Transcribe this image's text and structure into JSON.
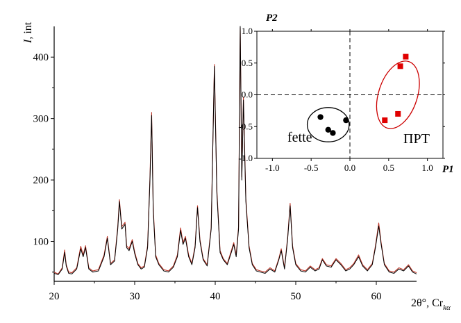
{
  "chart_data": [
    {
      "type": "line",
      "title": "",
      "xlabel": "2θ°, Cr",
      "xlabel_sub": "kα",
      "ylabel_italic": "I",
      "ylabel_rest": ", int",
      "xlim": [
        20,
        65
      ],
      "ylim": [
        35,
        450
      ],
      "xticks": [
        20,
        30,
        40,
        50,
        60
      ],
      "yticks": [
        100,
        200,
        300,
        400
      ],
      "xtick_labels": [
        "20",
        "30",
        "40",
        "50",
        "60"
      ],
      "ytick_labels": [
        "100",
        "200",
        "300",
        "400"
      ],
      "series": [
        {
          "color": "#000000",
          "x": [
            20.0,
            20.5,
            21.0,
            21.3,
            21.5,
            21.8,
            22.2,
            22.8,
            23.3,
            23.6,
            23.9,
            24.3,
            24.8,
            25.5,
            26.2,
            26.6,
            27.0,
            27.5,
            27.9,
            28.1,
            28.4,
            28.8,
            29.0,
            29.3,
            29.7,
            30.0,
            30.4,
            30.8,
            31.2,
            31.6,
            31.9,
            32.1,
            32.3,
            32.6,
            33.0,
            33.6,
            34.2,
            34.8,
            35.3,
            35.7,
            36.0,
            36.3,
            36.7,
            37.1,
            37.5,
            37.8,
            38.1,
            38.5,
            39.0,
            39.5,
            39.9,
            40.2,
            40.6,
            41.0,
            41.5,
            42.0,
            42.3,
            42.6,
            42.9,
            43.1,
            43.3,
            43.5,
            43.8,
            44.2,
            44.6,
            45.1,
            45.6,
            46.2,
            46.8,
            47.4,
            47.9,
            48.2,
            48.6,
            49.0,
            49.3,
            49.6,
            50.0,
            50.6,
            51.2,
            51.8,
            52.4,
            52.9,
            53.3,
            53.8,
            54.4,
            55.0,
            55.6,
            56.2,
            56.7,
            57.2,
            57.8,
            58.3,
            58.9,
            59.5,
            59.9,
            60.3,
            60.6,
            61.0,
            61.6,
            62.2,
            62.8,
            63.4,
            64.0,
            64.5,
            65.0
          ],
          "y": [
            48,
            46,
            55,
            82,
            60,
            48,
            47,
            55,
            88,
            75,
            90,
            55,
            50,
            52,
            75,
            105,
            62,
            68,
            120,
            165,
            120,
            128,
            90,
            85,
            100,
            80,
            62,
            55,
            58,
            90,
            200,
            305,
            150,
            75,
            62,
            52,
            50,
            58,
            75,
            118,
            95,
            105,
            75,
            62,
            90,
            155,
            100,
            70,
            60,
            120,
            385,
            180,
            82,
            70,
            62,
            82,
            95,
            75,
            120,
            450,
            200,
            330,
            165,
            90,
            62,
            52,
            50,
            48,
            55,
            50,
            70,
            85,
            55,
            105,
            158,
            90,
            62,
            52,
            50,
            58,
            52,
            55,
            70,
            60,
            58,
            70,
            62,
            52,
            55,
            62,
            75,
            60,
            52,
            62,
            90,
            125,
            95,
            62,
            50,
            48,
            55,
            52,
            60,
            50,
            47
          ]
        },
        {
          "color": "#c0392b",
          "x": [
            20.0,
            20.5,
            21.0,
            21.3,
            21.5,
            21.8,
            22.2,
            22.8,
            23.3,
            23.6,
            23.9,
            24.3,
            24.8,
            25.5,
            26.2,
            26.6,
            27.0,
            27.5,
            27.9,
            28.1,
            28.4,
            28.8,
            29.0,
            29.3,
            29.7,
            30.0,
            30.4,
            30.8,
            31.2,
            31.6,
            31.9,
            32.1,
            32.3,
            32.6,
            33.0,
            33.6,
            34.2,
            34.8,
            35.3,
            35.7,
            36.0,
            36.3,
            36.7,
            37.1,
            37.5,
            37.8,
            38.1,
            38.5,
            39.0,
            39.5,
            39.9,
            40.2,
            40.6,
            41.0,
            41.5,
            42.0,
            42.3,
            42.6,
            42.9,
            43.1,
            43.3,
            43.5,
            43.8,
            44.2,
            44.6,
            45.1,
            45.6,
            46.2,
            46.8,
            47.4,
            47.9,
            48.2,
            48.6,
            49.0,
            49.3,
            49.6,
            50.0,
            50.6,
            51.2,
            51.8,
            52.4,
            52.9,
            53.3,
            53.8,
            54.4,
            55.0,
            55.6,
            56.2,
            56.7,
            57.2,
            57.8,
            58.3,
            58.9,
            59.5,
            59.9,
            60.3,
            60.6,
            61.0,
            61.6,
            62.2,
            62.8,
            63.4,
            64.0,
            64.5,
            65.0
          ],
          "y": [
            50,
            47,
            57,
            86,
            62,
            50,
            49,
            57,
            92,
            78,
            93,
            57,
            52,
            54,
            78,
            108,
            64,
            70,
            124,
            168,
            124,
            131,
            93,
            88,
            103,
            83,
            64,
            57,
            60,
            93,
            205,
            310,
            155,
            78,
            64,
            54,
            52,
            60,
            78,
            122,
            98,
            108,
            78,
            64,
            93,
            158,
            103,
            72,
            62,
            123,
            388,
            185,
            85,
            72,
            64,
            85,
            98,
            78,
            124,
            448,
            205,
            335,
            170,
            93,
            64,
            54,
            52,
            50,
            57,
            52,
            72,
            88,
            57,
            108,
            162,
            93,
            64,
            54,
            52,
            60,
            54,
            57,
            72,
            62,
            60,
            72,
            64,
            54,
            57,
            64,
            78,
            62,
            54,
            64,
            93,
            130,
            98,
            64,
            52,
            50,
            57,
            54,
            62,
            52,
            49
          ]
        }
      ]
    },
    {
      "type": "scatter",
      "title": "",
      "xlabel": "P1",
      "ylabel": "P2",
      "xlim": [
        -1.2,
        1.2
      ],
      "ylim": [
        -1.0,
        1.0
      ],
      "xtick_labels": [
        "-1.0",
        "-0.5",
        "0.0",
        "0.5",
        "1.0"
      ],
      "ytick_labels": [
        "-1.0",
        "-0.5",
        "0.0",
        "0.5",
        "1.0"
      ],
      "xticks": [
        -1.0,
        -0.5,
        0.0,
        0.5,
        1.0
      ],
      "yticks": [
        -1.0,
        -0.5,
        0.0,
        0.5,
        1.0
      ],
      "series": [
        {
          "label": "fette",
          "marker": "circle",
          "color": "#000000",
          "points": [
            [
              -0.38,
              -0.35
            ],
            [
              -0.28,
              -0.55
            ],
            [
              -0.22,
              -0.6
            ],
            [
              -0.05,
              -0.4
            ]
          ],
          "enclosure": {
            "cx": -0.28,
            "cy": -0.47,
            "rx": 0.27,
            "ry": 0.27,
            "color": "#000000"
          }
        },
        {
          "label": "ПРТ",
          "marker": "square",
          "color": "#e00000",
          "points": [
            [
              0.72,
              0.6
            ],
            [
              0.65,
              0.45
            ],
            [
              0.62,
              -0.3
            ],
            [
              0.45,
              -0.4
            ]
          ],
          "enclosure": {
            "cx": 0.62,
            "cy": 0.0,
            "rx": 0.25,
            "ry": 0.55,
            "angle": 18,
            "color": "#cc0000"
          }
        }
      ]
    }
  ]
}
